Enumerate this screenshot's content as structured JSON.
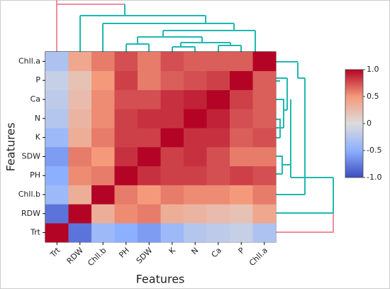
{
  "chart_data": {
    "type": "heatmap",
    "x_label": "Features",
    "y_label": "Features",
    "x": [
      "Trt",
      "RDW",
      "Chll.b",
      "PH",
      "SDW",
      "K",
      "N",
      "Ca",
      "P",
      "Chll.a"
    ],
    "y": [
      "Trt",
      "RDW",
      "Chll.b",
      "PH",
      "SDW",
      "K",
      "N",
      "Ca",
      "P",
      "Chll.a"
    ],
    "z": [
      [
        1,
        -0.8,
        -0.4,
        -0.5,
        -0.6,
        -0.4,
        -0.25,
        -0.2,
        -0.15,
        -0.3
      ],
      [
        -0.8,
        1,
        0.35,
        0.55,
        0.6,
        0.35,
        0.3,
        0.25,
        0.2,
        0.4
      ],
      [
        -0.4,
        0.35,
        1,
        0.6,
        0.5,
        0.6,
        0.55,
        0.55,
        0.5,
        0.6
      ],
      [
        -0.5,
        0.55,
        0.6,
        1,
        0.85,
        0.8,
        0.8,
        0.75,
        0.8,
        0.75
      ],
      [
        -0.6,
        0.6,
        0.5,
        0.85,
        1,
        0.8,
        0.85,
        0.75,
        0.6,
        0.6
      ],
      [
        -0.4,
        0.35,
        0.6,
        0.8,
        0.8,
        1,
        0.85,
        0.85,
        0.7,
        0.75
      ],
      [
        -0.25,
        0.3,
        0.55,
        0.8,
        0.85,
        0.85,
        1,
        0.9,
        0.75,
        0.7
      ],
      [
        -0.2,
        0.25,
        0.55,
        0.75,
        0.75,
        0.85,
        0.9,
        1,
        0.8,
        0.7
      ],
      [
        -0.15,
        0.2,
        0.5,
        0.8,
        0.6,
        0.7,
        0.75,
        0.8,
        1,
        0.7
      ],
      [
        -0.3,
        0.4,
        0.6,
        0.75,
        0.6,
        0.75,
        0.7,
        0.7,
        0.7,
        1
      ]
    ],
    "zlim": [
      -1,
      1
    ],
    "colors": [
      "#3b4cc0",
      "#8db0fe",
      "#dddcdc",
      "#f49a7b",
      "#b40426"
    ],
    "zticks": [
      {
        "value": 1,
        "label": "1.0"
      },
      0.5,
      0,
      -0.5,
      {
        "value": -1,
        "label": "-1.0"
      }
    ]
  }
}
